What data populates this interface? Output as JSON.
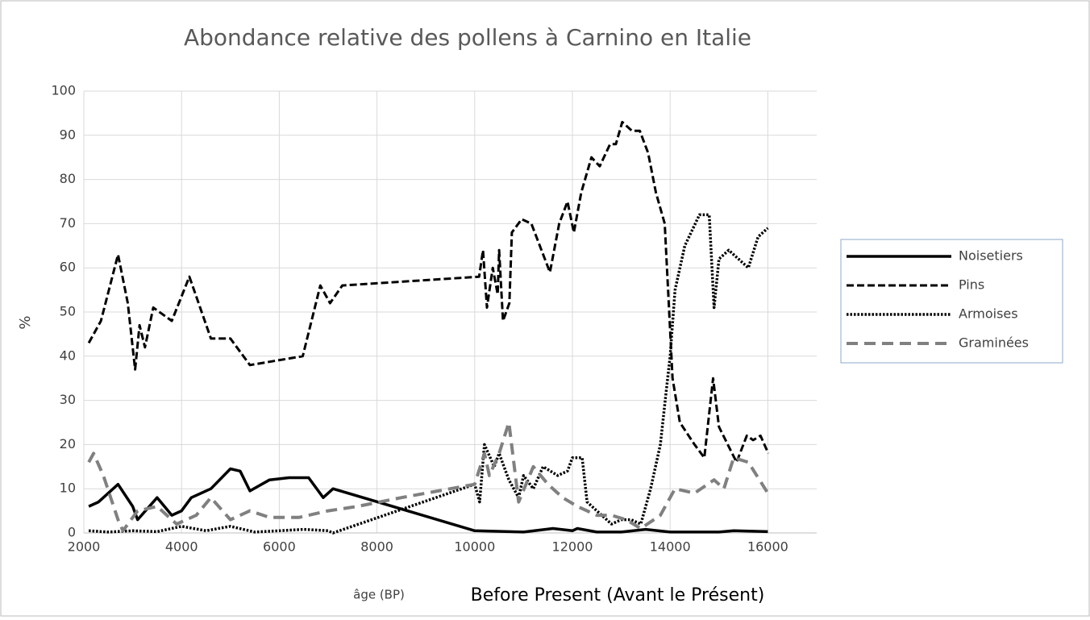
{
  "chart_data": {
    "type": "line",
    "title": "Abondance relative des pollens à Carnino en Italie",
    "ylabel": "%",
    "xlabel_note": "âge (BP)",
    "xlabel": "Before Present (Avant le Présent)",
    "xlim": [
      2000,
      17000
    ],
    "xticks": [
      2000,
      4000,
      6000,
      8000,
      10000,
      12000,
      14000,
      16000
    ],
    "ylim": [
      0,
      100
    ],
    "yticks": [
      0,
      10,
      20,
      30,
      40,
      50,
      60,
      70,
      80,
      90,
      100
    ],
    "grid": true,
    "legend": "right",
    "series": [
      {
        "name": "Noisetiers",
        "color": "#000000",
        "dash": "solid",
        "x": [
          2100,
          2300,
          2700,
          3000,
          3100,
          3500,
          3800,
          4000,
          4200,
          4600,
          5000,
          5200,
          5400,
          5800,
          6200,
          6600,
          6900,
          7100,
          10000,
          11000,
          11600,
          12000,
          12100,
          12500,
          13000,
          13500,
          14000,
          15000,
          15300,
          16000
        ],
        "values": [
          6,
          7,
          11,
          6,
          3,
          8,
          4,
          5,
          8,
          10,
          14.5,
          14,
          9.5,
          12,
          12.5,
          12.5,
          8,
          10,
          0.5,
          0.2,
          1,
          0.5,
          1,
          0.2,
          0.2,
          0.8,
          0.2,
          0.2,
          0.5,
          0.3
        ]
      },
      {
        "name": "Pins",
        "color": "#000000",
        "dash": "dash",
        "x": [
          2100,
          2350,
          2700,
          2900,
          3050,
          3140,
          3250,
          3420,
          3800,
          4160,
          4600,
          5000,
          5400,
          6480,
          6840,
          7040,
          7290,
          10090,
          10170,
          10250,
          10370,
          10470,
          10500,
          10580,
          10710,
          10760,
          10960,
          11160,
          11540,
          11730,
          11900,
          12030,
          12180,
          12390,
          12560,
          12770,
          12890,
          13020,
          13220,
          13380,
          13550,
          13710,
          13890,
          14050,
          14200,
          14500,
          14700,
          14880,
          15000,
          15360,
          15570,
          15700,
          15850,
          16010
        ],
        "values": [
          43,
          48,
          63,
          52,
          37,
          47,
          42,
          51,
          48,
          58,
          44,
          44,
          38,
          40,
          56,
          52,
          56,
          58,
          64,
          51,
          60,
          54,
          64,
          48,
          52,
          68,
          71,
          70,
          59,
          70,
          75,
          68,
          77,
          85,
          83,
          88,
          88,
          93,
          91,
          91,
          86,
          77,
          70,
          35,
          25,
          20,
          17,
          35,
          24,
          16,
          22,
          21,
          22,
          18
        ]
      },
      {
        "name": "Armoises",
        "color": "#000000",
        "dash": "dot",
        "x": [
          2100,
          2500,
          3000,
          3500,
          4000,
          4500,
          5000,
          5500,
          6000,
          6500,
          7000,
          7100,
          10000,
          10100,
          10200,
          10400,
          10500,
          10700,
          10900,
          11000,
          11200,
          11400,
          11700,
          11900,
          12000,
          12200,
          12300,
          12500,
          12800,
          13000,
          13200,
          13400,
          13600,
          13800,
          13900,
          14000,
          14100,
          14300,
          14600,
          14800,
          14900,
          15000,
          15200,
          15400,
          15600,
          15800,
          16000
        ],
        "values": [
          0.5,
          0.2,
          0.5,
          0.3,
          1.5,
          0.5,
          1.5,
          0.2,
          0.5,
          0.8,
          0.5,
          0,
          11,
          7,
          20,
          15,
          18,
          12,
          8,
          13,
          10,
          15,
          13,
          14,
          17,
          17,
          7,
          5,
          2,
          3,
          3,
          2,
          10,
          20,
          30,
          40,
          55,
          65,
          72,
          72,
          51,
          62,
          64,
          62,
          60,
          67,
          69
        ]
      },
      {
        "name": "Graminées",
        "color": "#808080",
        "dash": "longdash",
        "x": [
          2100,
          2200,
          2400,
          2700,
          2800,
          3100,
          3500,
          3900,
          4300,
          4600,
          5000,
          5400,
          5800,
          6400,
          7000,
          7600,
          8500,
          10000,
          10200,
          10300,
          10500,
          10700,
          10900,
          11200,
          11500,
          11800,
          12100,
          12500,
          12800,
          13100,
          13400,
          13800,
          14100,
          14500,
          14900,
          15100,
          15300,
          15600,
          16000
        ],
        "values": [
          16,
          18,
          13,
          3,
          0.5,
          5,
          6,
          2,
          4,
          8,
          3,
          5,
          3.5,
          3.5,
          5,
          6,
          8,
          11,
          18,
          13,
          18,
          25,
          7,
          15,
          11,
          8,
          6,
          4,
          4,
          3,
          1,
          4,
          10,
          9,
          12,
          10,
          17,
          16,
          9
        ]
      }
    ]
  }
}
